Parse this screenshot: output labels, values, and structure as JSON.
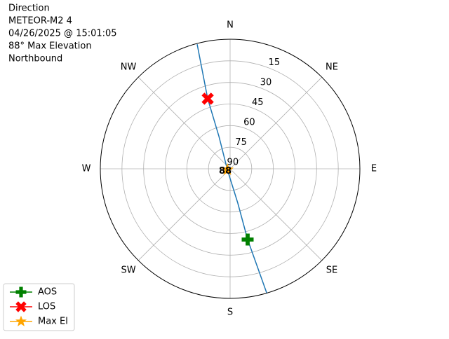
{
  "chart_data": {
    "type": "polar",
    "title_lines": [
      "Direction",
      "METEOR-M2 4",
      "04/26/2025 @ 15:01:05",
      "88° Max Elevation",
      "Northbound"
    ],
    "rlim": [
      90,
      0
    ],
    "rticks": [
      90,
      75,
      60,
      45,
      30,
      15
    ],
    "thetaticks": [
      {
        "value": 0,
        "label": "N"
      },
      {
        "value": 45,
        "label": "NE"
      },
      {
        "value": 90,
        "label": "E"
      },
      {
        "value": 135,
        "label": "SE"
      },
      {
        "value": 180,
        "label": "S"
      },
      {
        "value": 225,
        "label": "SW"
      },
      {
        "value": 270,
        "label": "W"
      },
      {
        "value": 315,
        "label": "NW"
      }
    ],
    "grid": true,
    "legend": "lower left",
    "track": {
      "color": "#1f77b4",
      "az": [
        345.2,
        342.3,
        341,
        251.6,
        167.4,
        166.1,
        163.6
      ],
      "el": [
        0.5,
        38.9,
        66.3,
        88,
        65.7,
        39.4,
        0.2
      ]
    },
    "series": [
      {
        "name": "AOS",
        "color": "#008000",
        "marker": "plus",
        "az": [
          166.1
        ],
        "el": [
          39.4
        ]
      },
      {
        "name": "LOS",
        "color": "#ff0000",
        "marker": "x",
        "az": [
          342.3
        ],
        "el": [
          38.9
        ]
      },
      {
        "name": "Max El",
        "color": "#ffa500",
        "marker": "star",
        "az": [
          251.6
        ],
        "el": [
          88
        ]
      }
    ]
  }
}
